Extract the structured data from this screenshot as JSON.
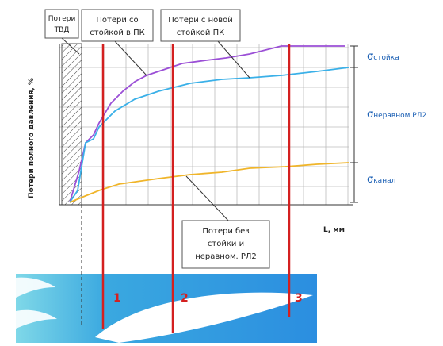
{
  "labels": {
    "tvd_lines": [
      "Потери",
      "ТВД"
    ],
    "strut_lines": [
      "Потери со",
      "стойкой в ПК"
    ],
    "new_strut_lines": [
      "Потери с новой",
      "стойкой ПК"
    ],
    "no_strut_lines": [
      "Потери без",
      "стойки и",
      "неравном. РЛ2"
    ],
    "y_axis": "Потери полного давления, %",
    "x_axis": "L, мм",
    "sigma": "σ",
    "sigma_strut": "стойка",
    "sigma_uneven": "неравном.РЛ2",
    "sigma_channel": "канал",
    "sections": [
      "1",
      "2",
      "3"
    ]
  }
}
